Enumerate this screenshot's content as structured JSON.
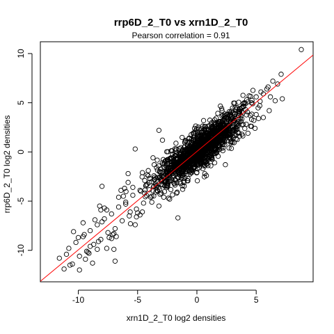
{
  "chart_data": {
    "type": "scatter",
    "title": "rrp6D_2_T0 vs xrn1D_2_T0",
    "subtitle": "Pearson correlation =  0.91",
    "xlabel": "xrn1D_2_T0 log2 densities",
    "ylabel": "rrp6D_2_T0 log2 densities",
    "xlim": [
      -13.2,
      9.8
    ],
    "ylim": [
      -13.2,
      11.2
    ],
    "x_ticks": [
      -10,
      -5,
      0,
      5
    ],
    "x_tick_labels": [
      "-10",
      "-5",
      "0",
      "5"
    ],
    "y_ticks": [
      -10,
      -5,
      0,
      5,
      10
    ],
    "y_tick_labels": [
      "-10",
      "-5",
      "0",
      "5",
      "10"
    ],
    "marker": "open-circle",
    "grid": false,
    "fit_line": {
      "intercept": 0.05,
      "slope": 1.0,
      "color": "#ff0000"
    },
    "series": [
      {
        "values_note_free": true,
        "x": [
          8.8,
          7.1,
          6.8,
          6.4,
          6.2,
          5.9,
          5.6,
          5.3,
          5.0,
          4.7,
          4.5,
          4.3,
          4.1,
          3.9,
          3.6,
          3.2,
          3.0,
          2.8,
          2.5,
          2.2,
          2.0,
          1.7,
          1.4,
          1.1,
          0.9,
          0.6,
          0.3,
          0.0,
          -0.3,
          -0.6,
          -0.9,
          -1.2,
          -1.5,
          -1.8,
          -2.1,
          -2.4,
          -2.7,
          -3.0,
          -3.3,
          -3.6,
          -3.9,
          -4.2,
          -4.5,
          -4.8,
          -5.1,
          -5.4,
          -5.7,
          -6.0,
          -6.3,
          -6.6,
          -6.9,
          -7.2,
          -7.5,
          -7.8,
          -8.1,
          -8.4,
          -8.7,
          -9.0,
          -9.3,
          -9.6,
          -9.9,
          -10.2,
          -10.5,
          -10.8,
          -11.2,
          -11.6,
          -8.8,
          -8.3,
          -7.6,
          -9.5,
          -5.2,
          -6.4,
          -3.2,
          -2.9,
          -0.5,
          -2.3,
          -4.6,
          -7.0,
          -1.6,
          2.4,
          3.8,
          4.9,
          5.6,
          0.8,
          -0.2,
          1.5,
          2.7,
          4.3,
          -3.7,
          -5.8,
          -8.0,
          -6.9,
          -9.9,
          -10.7,
          -11.0,
          6.1,
          6.6,
          7.2,
          3.1,
          1.9,
          0.4,
          -1.0,
          -2.0,
          -3.0,
          -4.0,
          -5.0,
          -6.0,
          -7.0,
          -8.0,
          -9.0,
          -10.0,
          2.0,
          3.0,
          4.0,
          5.0,
          6.0,
          1.0,
          0.0,
          -1.4,
          -2.6,
          -3.8,
          -4.4,
          -5.6,
          -6.2,
          -7.4,
          -8.6,
          -9.2,
          0.2,
          1.2,
          2.2,
          3.4,
          4.6,
          5.4,
          -0.8,
          -1.8,
          -2.8,
          -3.4,
          -4.8,
          -5.4,
          -6.8,
          -7.8,
          -8.4,
          1.6,
          2.6,
          3.6,
          4.4,
          5.2,
          -0.4,
          -1.2,
          -2.2,
          -3.2,
          -4.2,
          -5.2,
          -6.6,
          -7.6,
          -9.6,
          0.6,
          1.8,
          2.9,
          3.9,
          4.8,
          -1.6,
          -2.4,
          -3.6,
          -4.6,
          -5.8,
          -7.2,
          -8.2,
          -9.4,
          -10.4,
          2.3,
          3.3,
          4.2,
          -0.1,
          -1.1,
          -2.1,
          -3.1,
          -4.1,
          -5.1,
          -6.1,
          -7.1,
          -8.1,
          -9.1
        ],
        "y": [
          10.4,
          7.9,
          6.9,
          7.2,
          5.6,
          6.4,
          5.9,
          4.7,
          5.6,
          4.9,
          3.7,
          5.1,
          4.3,
          2.8,
          4.4,
          3.6,
          2.1,
          3.8,
          2.4,
          2.8,
          1.5,
          2.2,
          0.8,
          1.8,
          0.3,
          1.1,
          -0.5,
          0.6,
          -0.9,
          -0.2,
          -1.8,
          -0.8,
          -2.3,
          -1.2,
          -2.9,
          -1.7,
          -3.4,
          -2.1,
          -4.0,
          -2.8,
          -4.6,
          -3.3,
          -5.2,
          -3.9,
          -5.8,
          -4.4,
          -6.5,
          -5.1,
          -7.0,
          -5.6,
          -7.8,
          -6.3,
          -8.2,
          -6.8,
          -8.9,
          -7.4,
          -9.4,
          -8.0,
          -10.1,
          -8.6,
          -10.6,
          -9.2,
          -11.4,
          -9.8,
          -11.9,
          -10.8,
          -11.3,
          -9.1,
          -5.9,
          -8.4,
          0.3,
          -3.9,
          2.2,
          1.2,
          0.9,
          -4.8,
          -2.1,
          -9.9,
          -6.7,
          -1.3,
          1.8,
          2.4,
          3.5,
          -2.4,
          2.4,
          -1.1,
          0.4,
          1.9,
          -0.6,
          -2.2,
          -3.5,
          -11.1,
          -12.0,
          -11.5,
          -10.4,
          4.2,
          5.2,
          5.4,
          1.5,
          0.7,
          -0.9,
          -2.6,
          -1.1,
          -4.2,
          -3.1,
          -6.2,
          -5.3,
          -8.3,
          -7.1,
          -9.6,
          -8.7,
          3.1,
          1.9,
          5.0,
          3.8,
          6.6,
          -0.5,
          1.4,
          -3.2,
          -1.4,
          -5.1,
          -2.9,
          -7.3,
          -4.5,
          -8.7,
          -6.9,
          -10.2,
          -1.6,
          2.5,
          0.4,
          4.5,
          2.6,
          6.1,
          -2.9,
          -0.4,
          -4.6,
          -1.6,
          -6.4,
          -3.6,
          -8.6,
          -5.7,
          -9.9,
          0.3,
          3.6,
          1.6,
          5.7,
          3.4,
          -1.9,
          -3.8,
          -0.6,
          -5.5,
          -2.3,
          -7.4,
          -4.6,
          -9.8,
          -7.2,
          -0.3,
          2.9,
          1.1,
          4.9,
          3.2,
          -2.6,
          -4.7,
          -1.3,
          -6.1,
          -3.1,
          -8.8,
          -5.5,
          -10.9,
          -8.1,
          3.4,
          1.7,
          5.3,
          0.9,
          -2.7,
          0.1,
          -4.3,
          -1.9,
          -6.6,
          -3.7,
          -8.4,
          -5.9,
          -10.3
        ]
      }
    ]
  }
}
